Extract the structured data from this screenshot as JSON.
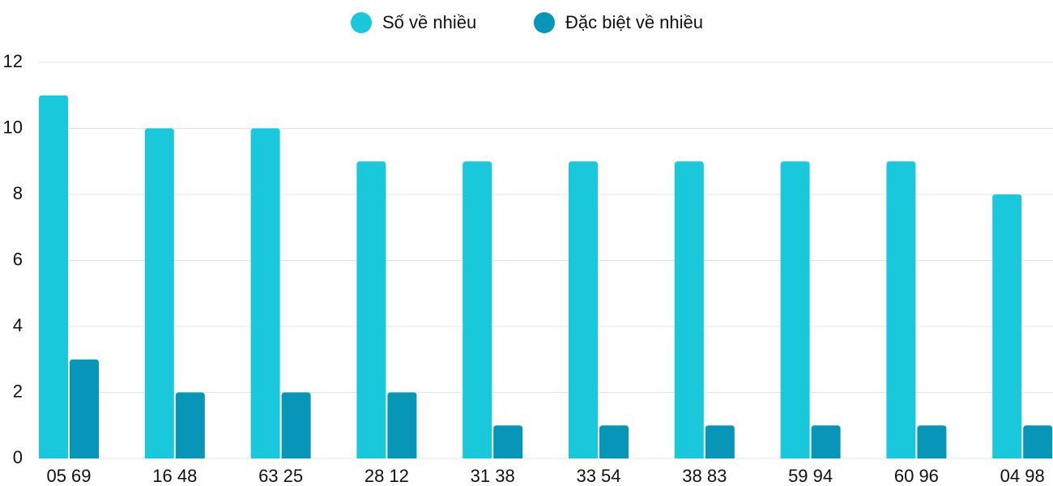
{
  "chart_data": {
    "type": "bar",
    "categories": [
      "05 69",
      "16 48",
      "63 25",
      "28 12",
      "31 38",
      "33 54",
      "38 83",
      "59 94",
      "60 96",
      "04 98"
    ],
    "series": [
      {
        "name": "Số về nhiều",
        "color": "#1ac8db",
        "values": [
          11,
          10,
          10,
          9,
          9,
          9,
          9,
          9,
          9,
          8
        ]
      },
      {
        "name": "Đặc biệt về nhiều",
        "color": "#0795b8",
        "values": [
          3,
          2,
          2,
          2,
          1,
          1,
          1,
          1,
          1,
          1
        ]
      }
    ],
    "ylim": [
      0,
      12
    ],
    "yticks": [
      0,
      2,
      4,
      6,
      8,
      10,
      12
    ],
    "grid": true,
    "legend": "top"
  }
}
